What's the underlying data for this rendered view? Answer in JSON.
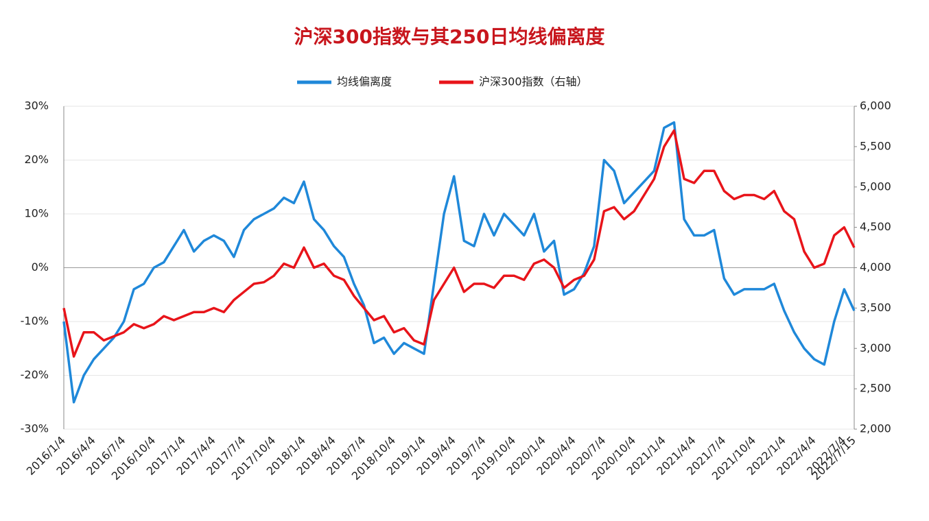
{
  "chart_data": {
    "type": "line",
    "title": "沪深300指数与其250日均线偏离度",
    "categories": [
      "2016/1/4",
      null,
      null,
      "2016/4/4",
      null,
      null,
      "2016/7/4",
      null,
      null,
      "2016/10/4",
      null,
      null,
      "2017/1/4",
      null,
      null,
      "2017/4/4",
      null,
      null,
      "2017/7/4",
      null,
      null,
      "2017/10/4",
      null,
      null,
      "2018/1/4",
      null,
      null,
      "2018/4/4",
      null,
      null,
      "2018/7/4",
      null,
      null,
      "2018/10/4",
      null,
      null,
      "2019/1/4",
      null,
      null,
      "2019/4/4",
      null,
      null,
      "2019/7/4",
      null,
      null,
      "2019/10/4",
      null,
      null,
      "2020/1/4",
      null,
      null,
      "2020/4/4",
      null,
      null,
      "2020/7/4",
      null,
      null,
      "2020/10/4",
      null,
      null,
      "2021/1/4",
      null,
      null,
      "2021/4/4",
      null,
      null,
      "2021/7/4",
      null,
      null,
      "2021/10/4",
      null,
      null,
      "2022/1/4",
      null,
      null,
      "2022/4/4",
      null,
      null,
      "2022/7/4",
      "2022/7/15"
    ],
    "series": [
      {
        "name": "均线偏离度",
        "color": "#1f88d9",
        "axis": "y",
        "values": [
          -10,
          -25,
          -20,
          -17,
          -15,
          -13,
          -10,
          -4,
          -3,
          0,
          1,
          4,
          7,
          3,
          5,
          6,
          5,
          2,
          7,
          9,
          10,
          11,
          13,
          12,
          16,
          9,
          7,
          4,
          2,
          -3,
          -7,
          -14,
          -13,
          -16,
          -14,
          -15,
          -16,
          -3,
          10,
          17,
          5,
          4,
          10,
          6,
          10,
          8,
          6,
          10,
          3,
          5,
          -5,
          -4,
          -1,
          4,
          20,
          18,
          12,
          14,
          16,
          18,
          26,
          27,
          9,
          6,
          6,
          7,
          -2,
          -5,
          -4,
          -4,
          -4,
          -3,
          -8,
          -12,
          -15,
          -17,
          -18,
          -10,
          -4,
          -8
        ]
      },
      {
        "name": "沪深300指数（右轴）",
        "color": "#e8141a",
        "axis": "y2",
        "values": [
          3500,
          2900,
          3200,
          3200,
          3100,
          3150,
          3200,
          3300,
          3250,
          3300,
          3400,
          3350,
          3400,
          3450,
          3450,
          3500,
          3450,
          3600,
          3700,
          3800,
          3820,
          3900,
          4050,
          4000,
          4250,
          4000,
          4050,
          3900,
          3850,
          3650,
          3500,
          3350,
          3400,
          3200,
          3250,
          3100,
          3050,
          3600,
          3800,
          4000,
          3700,
          3800,
          3800,
          3750,
          3900,
          3900,
          3850,
          4050,
          4100,
          4000,
          3750,
          3850,
          3900,
          4100,
          4700,
          4750,
          4600,
          4700,
          4900,
          5100,
          5500,
          5700,
          5100,
          5050,
          5200,
          5200,
          4950,
          4850,
          4900,
          4900,
          4850,
          4950,
          4700,
          4600,
          4200,
          4000,
          4050,
          4400,
          4500,
          4250
        ]
      }
    ],
    "ylim": [
      -30,
      30
    ],
    "yticks": [
      {
        "value": -30,
        "label": "-30%"
      },
      {
        "value": -20,
        "label": "-20%"
      },
      {
        "value": -10,
        "label": "-10%"
      },
      {
        "value": 0,
        "label": "0%"
      },
      {
        "value": 10,
        "label": "10%"
      },
      {
        "value": 20,
        "label": "20%"
      },
      {
        "value": 30,
        "label": "30%"
      }
    ],
    "y2lim": [
      2000,
      6000
    ],
    "y2ticks": [
      {
        "value": 2000,
        "label": "2,000"
      },
      {
        "value": 2500,
        "label": "2,500"
      },
      {
        "value": 3000,
        "label": "3,000"
      },
      {
        "value": 3500,
        "label": "3,500"
      },
      {
        "value": 4000,
        "label": "4,000"
      },
      {
        "value": 4500,
        "label": "4,500"
      },
      {
        "value": 5000,
        "label": "5,000"
      },
      {
        "value": 5500,
        "label": "5,500"
      },
      {
        "value": 6000,
        "label": "6,000"
      }
    ],
    "grid": true,
    "legend": "top"
  }
}
